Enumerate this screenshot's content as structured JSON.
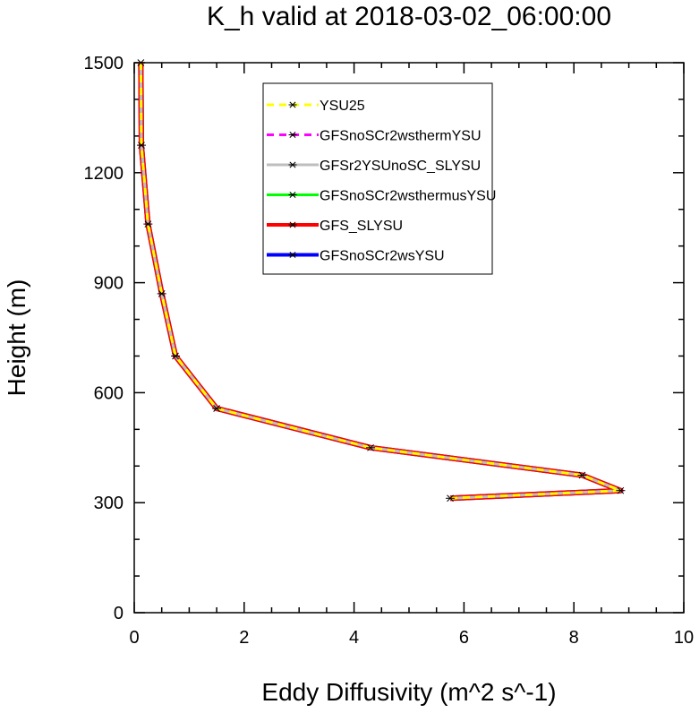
{
  "chart_data": {
    "type": "line",
    "title": "K_h valid at 2018-03-02_06:00:00",
    "xlabel": "Eddy Diffusivity (m^2 s^-1)",
    "ylabel": "Height (m)",
    "xlim": [
      0,
      10
    ],
    "ylim": [
      0,
      1500
    ],
    "xticks": [
      "0",
      "2",
      "4",
      "6",
      "8",
      "10"
    ],
    "yticks": [
      "0",
      "300",
      "600",
      "900",
      "1200",
      "1500"
    ],
    "grid": false,
    "legend_position": "top-right-inside",
    "series": [
      {
        "name": "YSU25",
        "color": "#ffff00",
        "style": "dashed",
        "x": [
          5.75,
          8.85,
          8.15,
          4.3,
          1.5,
          0.75,
          0.5,
          0.25,
          0.13,
          0.12
        ],
        "y": [
          312,
          333,
          375,
          450,
          557,
          700,
          870,
          1060,
          1275,
          1500
        ]
      },
      {
        "name": "GFSnoSCr2wsthermYSU",
        "color": "#ff00ff",
        "style": "dashed",
        "x": [
          5.75,
          8.85,
          8.15,
          4.3,
          1.5,
          0.75,
          0.5,
          0.25,
          0.13,
          0.12
        ],
        "y": [
          312,
          333,
          375,
          450,
          557,
          700,
          870,
          1060,
          1275,
          1500
        ]
      },
      {
        "name": "GFSr2YSUnoSC_SLYSU",
        "color": "#bebebe",
        "style": "solid",
        "x": [
          5.75,
          8.85,
          8.15,
          4.3,
          1.5,
          0.75,
          0.5,
          0.25,
          0.13,
          0.12
        ],
        "y": [
          312,
          333,
          375,
          450,
          557,
          700,
          870,
          1060,
          1275,
          1500
        ]
      },
      {
        "name": "GFSnoSCr2wsthermusYSU",
        "color": "#00ff00",
        "style": "solid",
        "x": [
          5.75,
          8.85,
          8.15,
          4.3,
          1.5,
          0.75,
          0.5,
          0.25,
          0.13,
          0.12
        ],
        "y": [
          312,
          333,
          375,
          450,
          557,
          700,
          870,
          1060,
          1275,
          1500
        ]
      },
      {
        "name": "GFS_SLYSU",
        "color": "#ff0000",
        "style": "solid",
        "x": [
          5.75,
          8.85,
          8.15,
          4.3,
          1.5,
          0.75,
          0.5,
          0.25,
          0.13,
          0.12
        ],
        "y": [
          312,
          333,
          375,
          450,
          557,
          700,
          870,
          1060,
          1275,
          1500
        ]
      },
      {
        "name": "GFSnoSCr2wsYSU",
        "color": "#0000ff",
        "style": "solid",
        "x": [
          5.75,
          8.85,
          8.15,
          4.3,
          1.5,
          0.75,
          0.5,
          0.25,
          0.13,
          0.12
        ],
        "y": [
          312,
          333,
          375,
          450,
          557,
          700,
          870,
          1060,
          1275,
          1500
        ]
      }
    ]
  }
}
